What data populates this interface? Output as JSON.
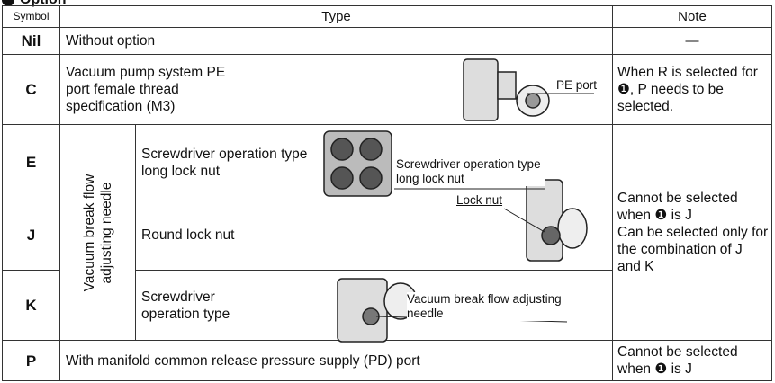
{
  "header": {
    "title": "Option"
  },
  "table": {
    "columns": [
      "Symbol",
      "Type",
      "Note"
    ],
    "rows": [
      {
        "symbol": "Nil",
        "type": "Without option",
        "note": "—"
      },
      {
        "symbol": "C",
        "type": "Vacuum pump system PE port female thread specification (M3)",
        "note": "When R is selected for ❶, P needs to be selected."
      },
      {
        "symbol": "E",
        "type": "Screwdriver operation type long lock nut"
      },
      {
        "symbol": "J",
        "type": "Round lock nut"
      },
      {
        "symbol": "K",
        "type": "Screwdriver operation type"
      },
      {
        "symbol": "P",
        "type": "With manifold common release pressure supply (PD) port",
        "note": "Cannot be selected when ❶ is J"
      }
    ],
    "group": {
      "label": "Vacuum break flow adjusting needle",
      "note": [
        "Cannot be selected when ❶ is J",
        "Can be selected only for the combination of J and K"
      ]
    }
  },
  "callouts": [
    "PE port",
    "Screwdriver operation type long lock nut",
    "Lock nut",
    "Vacuum break flow adjusting needle"
  ]
}
